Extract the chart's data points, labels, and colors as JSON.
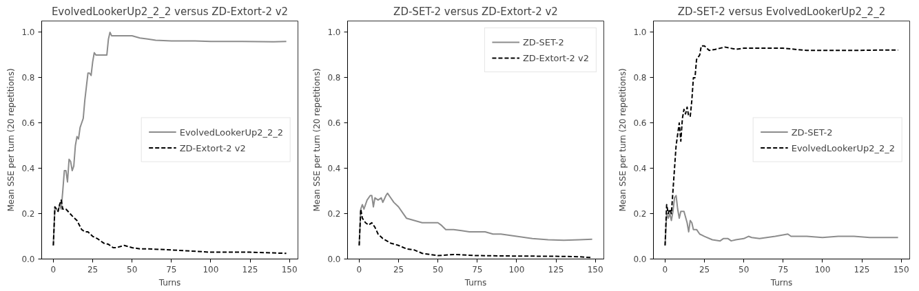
{
  "chart_data": [
    {
      "type": "line",
      "title": "EvolvedLookerUp2_2_2 versus ZD-Extort-2 v2",
      "xlabel": "Turns",
      "ylabel": "Mean SSE per turn (20 repetitions)",
      "xlim": [
        -7.4,
        155.4
      ],
      "ylim": [
        0,
        1.05
      ],
      "xticks": [
        0,
        25,
        50,
        75,
        100,
        125,
        150
      ],
      "yticks": [
        {
          "value": 0,
          "label": "0.0"
        },
        {
          "value": 0.2,
          "label": "0.2"
        },
        {
          "value": 0.4,
          "label": "0.4"
        },
        {
          "value": 0.6,
          "label": "0.6"
        },
        {
          "value": 0.8,
          "label": "0.8"
        },
        {
          "value": 1,
          "label": "1.0"
        }
      ],
      "grid": false,
      "legend": "center right",
      "series": [
        {
          "name": "EvolvedLookerUp2_2_2",
          "color": "#8c8c8c",
          "line_style": "solid",
          "x": [
            0,
            1,
            2,
            3,
            4,
            5,
            6,
            7,
            8,
            9,
            10,
            11,
            12,
            13,
            14,
            15,
            16,
            17,
            18,
            19,
            20,
            21,
            22,
            23,
            24,
            25,
            26,
            27,
            28,
            30,
            32,
            34,
            35,
            36,
            37,
            40,
            50,
            55,
            60,
            65,
            75,
            90,
            100,
            120,
            140,
            148
          ],
          "values": [
            0.06,
            0.23,
            0.22,
            0.21,
            0.24,
            0.22,
            0.3,
            0.39,
            0.39,
            0.34,
            0.44,
            0.43,
            0.39,
            0.41,
            0.5,
            0.54,
            0.53,
            0.58,
            0.6,
            0.62,
            0.7,
            0.76,
            0.82,
            0.82,
            0.81,
            0.87,
            0.91,
            0.9,
            0.9,
            0.9,
            0.9,
            0.9,
            0.97,
            1.0,
            0.985,
            0.985,
            0.985,
            0.975,
            0.97,
            0.965,
            0.962,
            0.962,
            0.96,
            0.96,
            0.958,
            0.96
          ]
        },
        {
          "name": "ZD-Extort-2 v2",
          "color": "#000000",
          "line_style": "dashed",
          "x": [
            0,
            1,
            2,
            3,
            4,
            5,
            6,
            8,
            12,
            15,
            18,
            20,
            22,
            25,
            28,
            30,
            32,
            35,
            38,
            40,
            45,
            50,
            55,
            60,
            75,
            100,
            125,
            148
          ],
          "values": [
            0.06,
            0.23,
            0.22,
            0.21,
            0.24,
            0.26,
            0.22,
            0.22,
            0.19,
            0.17,
            0.13,
            0.12,
            0.12,
            0.1,
            0.09,
            0.08,
            0.07,
            0.065,
            0.05,
            0.05,
            0.06,
            0.05,
            0.045,
            0.045,
            0.04,
            0.03,
            0.03,
            0.025
          ]
        }
      ]
    },
    {
      "type": "line",
      "title": "ZD-SET-2 versus ZD-Extort-2 v2",
      "xlabel": "Turns",
      "ylabel": "Mean SSE per turn (20 repetitions)",
      "xlim": [
        -7.4,
        155.4
      ],
      "ylim": [
        0,
        1.05
      ],
      "xticks": [
        0,
        25,
        50,
        75,
        100,
        125,
        150
      ],
      "yticks": [
        {
          "value": 0,
          "label": "0.0"
        },
        {
          "value": 0.2,
          "label": "0.2"
        },
        {
          "value": 0.4,
          "label": "0.4"
        },
        {
          "value": 0.6,
          "label": "0.6"
        },
        {
          "value": 0.8,
          "label": "0.8"
        },
        {
          "value": 1,
          "label": "1.0"
        }
      ],
      "grid": false,
      "legend": "top right",
      "series": [
        {
          "name": "ZD-SET-2",
          "color": "#8c8c8c",
          "line_style": "solid",
          "x": [
            0,
            1,
            2,
            3,
            5,
            7,
            8,
            9,
            10,
            12,
            14,
            15,
            17,
            18,
            20,
            22,
            25,
            28,
            30,
            35,
            40,
            45,
            50,
            52,
            55,
            60,
            65,
            70,
            80,
            85,
            90,
            100,
            110,
            120,
            130,
            140,
            148
          ],
          "values": [
            0.06,
            0.22,
            0.24,
            0.22,
            0.26,
            0.28,
            0.28,
            0.23,
            0.27,
            0.26,
            0.27,
            0.25,
            0.28,
            0.29,
            0.27,
            0.25,
            0.23,
            0.2,
            0.18,
            0.17,
            0.16,
            0.16,
            0.16,
            0.15,
            0.13,
            0.13,
            0.125,
            0.12,
            0.12,
            0.11,
            0.11,
            0.1,
            0.09,
            0.085,
            0.083,
            0.085,
            0.087
          ]
        },
        {
          "name": "ZD-Extort-2 v2",
          "color": "#000000",
          "line_style": "dashed",
          "x": [
            0,
            1,
            2,
            4,
            6,
            8,
            10,
            12,
            15,
            20,
            25,
            30,
            35,
            40,
            45,
            50,
            60,
            75,
            100,
            125,
            140,
            148
          ],
          "values": [
            0.06,
            0.22,
            0.18,
            0.16,
            0.15,
            0.16,
            0.14,
            0.11,
            0.09,
            0.07,
            0.06,
            0.045,
            0.04,
            0.025,
            0.02,
            0.015,
            0.02,
            0.015,
            0.013,
            0.012,
            0.01,
            0.006
          ]
        }
      ]
    },
    {
      "type": "line",
      "title": "ZD-SET-2 versus EvolvedLookerUp2_2_2",
      "xlabel": "Turns",
      "ylabel": "Mean SSE per turn (20 repetitions)",
      "xlim": [
        -7.4,
        155.4
      ],
      "ylim": [
        0,
        1.05
      ],
      "xticks": [
        0,
        25,
        50,
        75,
        100,
        125,
        150
      ],
      "yticks": [
        {
          "value": 0,
          "label": "0.0"
        },
        {
          "value": 0.2,
          "label": "0.2"
        },
        {
          "value": 0.4,
          "label": "0.4"
        },
        {
          "value": 0.6,
          "label": "0.6"
        },
        {
          "value": 0.8,
          "label": "0.8"
        },
        {
          "value": 1,
          "label": "1.0"
        }
      ],
      "grid": false,
      "legend": "center right",
      "series": [
        {
          "name": "ZD-SET-2",
          "color": "#8c8c8c",
          "line_style": "solid",
          "x": [
            0,
            1,
            2,
            3,
            4,
            5,
            6,
            7,
            8,
            9,
            10,
            12,
            14,
            15,
            16,
            17,
            18,
            20,
            22,
            25,
            30,
            35,
            37,
            40,
            42,
            45,
            50,
            53,
            55,
            60,
            70,
            78,
            80,
            90,
            100,
            110,
            120,
            130,
            140,
            148
          ],
          "values": [
            0.06,
            0.2,
            0.18,
            0.2,
            0.17,
            0.21,
            0.27,
            0.28,
            0.22,
            0.18,
            0.21,
            0.21,
            0.16,
            0.12,
            0.17,
            0.16,
            0.13,
            0.13,
            0.11,
            0.1,
            0.085,
            0.08,
            0.09,
            0.09,
            0.08,
            0.085,
            0.09,
            0.1,
            0.095,
            0.09,
            0.1,
            0.11,
            0.1,
            0.1,
            0.095,
            0.1,
            0.1,
            0.095,
            0.095,
            0.095
          ]
        },
        {
          "name": "EvolvedLookerUp2_2_2",
          "color": "#000000",
          "line_style": "dashed",
          "x": [
            0,
            1,
            2,
            3,
            4,
            6,
            7,
            8,
            9,
            10,
            11,
            12,
            13,
            14,
            15,
            16,
            17,
            18,
            19,
            20,
            22,
            23,
            25,
            28,
            32,
            38,
            45,
            50,
            60,
            75,
            90,
            100,
            120,
            140,
            148
          ],
          "values": [
            0.06,
            0.24,
            0.2,
            0.22,
            0.2,
            0.4,
            0.5,
            0.55,
            0.6,
            0.52,
            0.62,
            0.66,
            0.64,
            0.67,
            0.63,
            0.63,
            0.7,
            0.8,
            0.8,
            0.88,
            0.9,
            0.94,
            0.94,
            0.92,
            0.925,
            0.935,
            0.925,
            0.93,
            0.93,
            0.93,
            0.92,
            0.92,
            0.92,
            0.922,
            0.922
          ]
        }
      ]
    }
  ]
}
